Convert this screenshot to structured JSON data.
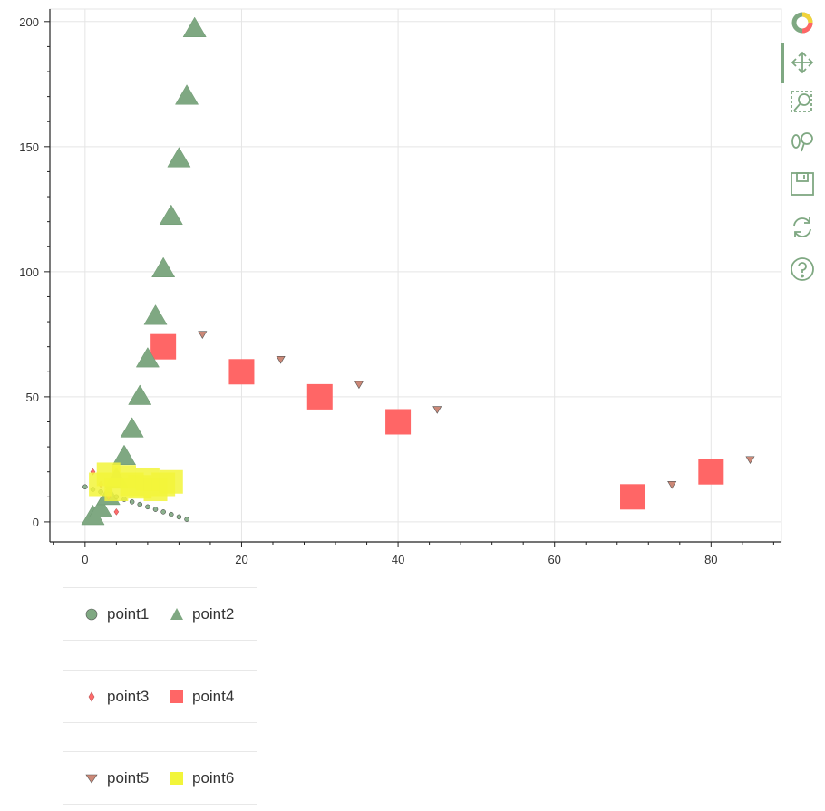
{
  "chart_data": {
    "type": "scatter",
    "title": "",
    "xlabel": "",
    "ylabel": "",
    "xlim": [
      -4.5,
      89
    ],
    "ylim": [
      -8,
      205
    ],
    "x_ticks": [
      0,
      20,
      40,
      60,
      80
    ],
    "y_ticks": [
      0,
      50,
      100,
      150,
      200
    ],
    "grid": true,
    "series": [
      {
        "name": "point1",
        "marker": "circle",
        "color": "#7fa882",
        "size": 5,
        "x": [
          0,
          1,
          2,
          3,
          4,
          5,
          6,
          7,
          8,
          9,
          10,
          11,
          12,
          13
        ],
        "y": [
          14,
          13,
          12,
          11,
          10,
          9,
          8,
          7,
          6,
          5,
          4,
          3,
          2,
          1
        ]
      },
      {
        "name": "point2",
        "marker": "triangle",
        "color": "#7fa882",
        "size": 24,
        "x": [
          1,
          2,
          3,
          4,
          5,
          6,
          7,
          8,
          9,
          10,
          11,
          12,
          13,
          14
        ],
        "y": [
          2,
          5,
          10,
          17,
          26,
          37,
          50,
          65,
          82,
          101,
          122,
          145,
          170,
          197
        ]
      },
      {
        "name": "point3",
        "marker": "diamond",
        "color": "#ff6b6b",
        "size": 5,
        "x": [
          1,
          2,
          3,
          4
        ],
        "y": [
          20,
          15,
          10,
          4
        ]
      },
      {
        "name": "point4",
        "marker": "square",
        "color": "#ff6666",
        "size": 28,
        "x": [
          10,
          20,
          30,
          40,
          70,
          80
        ],
        "y": [
          70,
          60,
          50,
          40,
          10,
          20
        ]
      },
      {
        "name": "point5",
        "marker": "inverted_triangle",
        "color": "#cc8877",
        "size": 9,
        "x": [
          15,
          25,
          35,
          45,
          75,
          85
        ],
        "y": [
          75,
          65,
          55,
          45,
          15,
          25
        ]
      },
      {
        "name": "point6",
        "marker": "square",
        "color": "#f2f53a",
        "size": 26,
        "x": [
          2,
          3,
          4,
          5,
          6,
          7,
          8,
          9,
          10,
          11
        ],
        "y": [
          15,
          19,
          13,
          18,
          15,
          14,
          17,
          13,
          15,
          16
        ]
      }
    ],
    "legend_rows": [
      [
        "point1",
        "point2"
      ],
      [
        "point3",
        "point4"
      ],
      [
        "point5",
        "point6"
      ]
    ],
    "legend_location": "below"
  },
  "toolbar": {
    "tools": [
      {
        "name": "bokeh-logo-icon",
        "active": false
      },
      {
        "name": "pan-icon",
        "active": true
      },
      {
        "name": "box-zoom-icon",
        "active": false
      },
      {
        "name": "wheel-zoom-icon",
        "active": false
      },
      {
        "name": "save-icon",
        "active": false
      },
      {
        "name": "reset-icon",
        "active": false
      },
      {
        "name": "help-icon",
        "active": false
      }
    ]
  }
}
